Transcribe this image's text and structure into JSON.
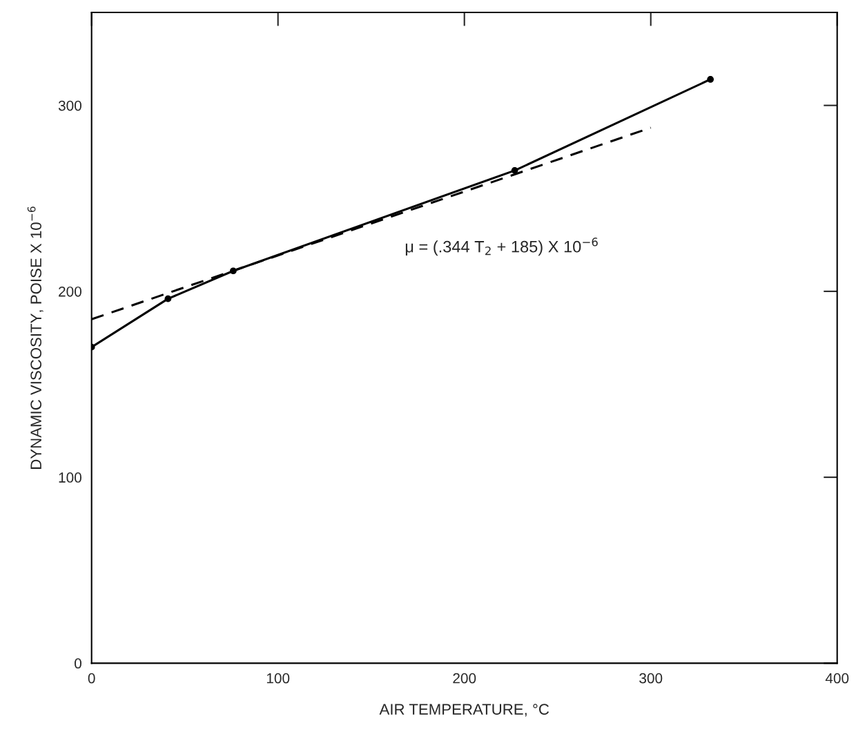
{
  "chart_data": {
    "type": "line",
    "xlabel": "AIR TEMPERATURE, °C",
    "ylabel": "DYNAMIC VISCOSITY, POISE X 10$^{−6}$",
    "xlim": [
      0,
      400
    ],
    "ylim": [
      0,
      350
    ],
    "xticks": [
      0,
      100,
      200,
      300,
      400
    ],
    "yticks": [
      0,
      100,
      200,
      300
    ],
    "grid": false,
    "legend": false,
    "series": [
      {
        "color": "#000000",
        "x": [
          0,
          41,
          76,
          227,
          332
        ],
        "values": [
          170,
          196,
          211,
          265,
          314
        ],
        "marker": "circle",
        "line_style": "solid"
      },
      {
        "color": "#000000",
        "x": [
          0,
          300
        ],
        "values": [
          185,
          288
        ],
        "marker": "none",
        "line_style": "dashed"
      }
    ],
    "annotations": [
      "μ = (.344 T$_{2}$ + 185) X 10$^{−6}$"
    ]
  }
}
